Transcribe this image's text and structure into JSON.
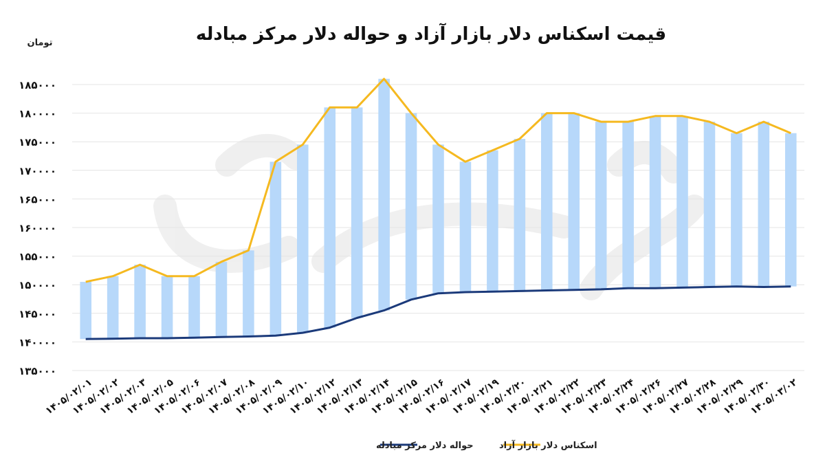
{
  "chart_data": {
    "type": "line",
    "title": "قیمت اسکناس دلار بازار آزاد و حواله دلار مرکز مبادله",
    "unit_label": "تومان",
    "y_ticks": [
      "۱۸۵۰۰۰",
      "۱۸۰۰۰۰",
      "۱۷۵۰۰۰",
      "۱۷۰۰۰۰",
      "۱۶۵۰۰۰",
      "۱۶۰۰۰۰",
      "۱۵۵۰۰۰",
      "۱۵۰۰۰۰",
      "۱۴۵۰۰۰",
      "۱۴۰۰۰۰",
      "۱۳۵۰۰۰"
    ],
    "ylim": [
      135000,
      185000
    ],
    "grid": true,
    "legend_position": "bottom",
    "categories": [
      "۱۴۰۵/۰۲/۰۱",
      "۱۴۰۵/۰۲/۰۲",
      "۱۴۰۵/۰۲/۰۳",
      "۱۴۰۵/۰۲/۰۵",
      "۱۴۰۵/۰۲/۰۶",
      "۱۴۰۵/۰۲/۰۷",
      "۱۴۰۵/۰۲/۰۸",
      "۱۴۰۵/۰۲/۰۹",
      "۱۴۰۵/۰۲/۱۰",
      "۱۴۰۵/۰۲/۱۲",
      "۱۴۰۵/۰۲/۱۳",
      "۱۴۰۵/۰۲/۱۴",
      "۱۴۰۵/۰۲/۱۵",
      "۱۴۰۵/۰۲/۱۶",
      "۱۴۰۵/۰۲/۱۷",
      "۱۴۰۵/۰۲/۱۹",
      "۱۴۰۵/۰۲/۲۰",
      "۱۴۰۵/۰۲/۲۱",
      "۱۴۰۵/۰۲/۲۲",
      "۱۴۰۵/۰۲/۲۳",
      "۱۴۰۵/۰۲/۲۴",
      "۱۴۰۵/۰۲/۲۶",
      "۱۴۰۵/۰۲/۲۷",
      "۱۴۰۵/۰۲/۲۸",
      "۱۴۰۵/۰۲/۲۹",
      "۱۴۰۵/۰۲/۳۰",
      "۱۴۰۵/۰۳/۰۲"
    ],
    "series": [
      {
        "name": "اسکناس دلار بازار آزاد",
        "color": "#f5b920",
        "values": [
          150500,
          151500,
          153500,
          151500,
          151500,
          154000,
          156000,
          171500,
          174500,
          181000,
          181000,
          186000,
          180000,
          174500,
          171500,
          173500,
          175500,
          180000,
          180000,
          178500,
          178500,
          179500,
          179500,
          178500,
          176500,
          178500,
          176500
        ]
      },
      {
        "name": "حواله دلار مرکز مبادله",
        "color": "#1b3a7a",
        "values": [
          140500,
          140550,
          140650,
          140650,
          140750,
          140850,
          140950,
          141100,
          141600,
          142500,
          144200,
          145500,
          147400,
          148500,
          148700,
          148800,
          148900,
          149000,
          149100,
          149200,
          149400,
          149400,
          149500,
          149600,
          149700,
          149600,
          149700
        ]
      }
    ],
    "bar_color": "#b7d8fa"
  }
}
